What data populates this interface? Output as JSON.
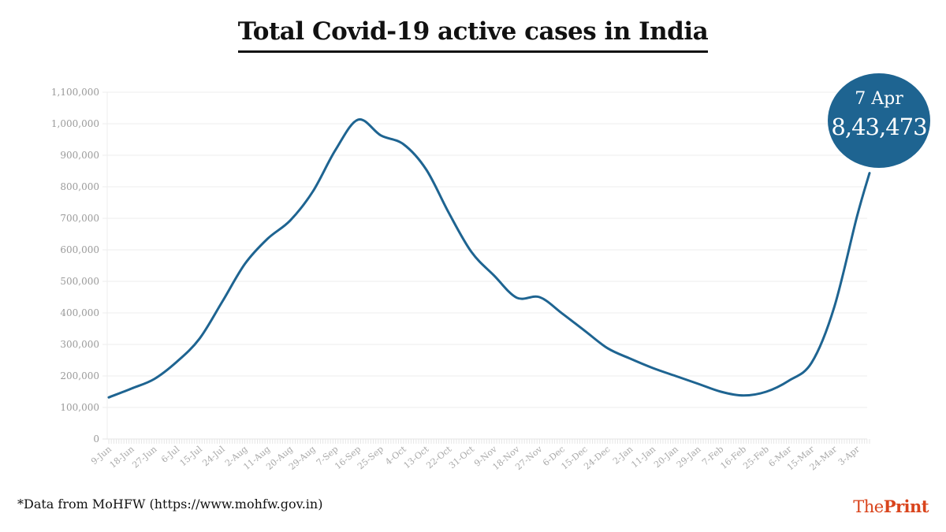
{
  "title": "Total Covid-19 active cases in India",
  "source": "*Data from MoHFW (https://www.mohfw.gov.in)",
  "logo": {
    "part1": "The",
    "part2": "Print",
    "color": "#d9441c"
  },
  "callout": {
    "date": "7 Apr",
    "value": "8,43,473",
    "color": "#1e6491"
  },
  "chart_data": {
    "type": "line",
    "title": "Total Covid-19 active cases in India",
    "xlabel": "",
    "ylabel": "",
    "ylim": [
      0,
      1100000
    ],
    "grid": true,
    "line_color": "#1e6491",
    "ytick_labels": [
      "0",
      "100,000",
      "200,000",
      "300,000",
      "400,000",
      "500,000",
      "600,000",
      "700,000",
      "800,000",
      "900,000",
      "1,000,000",
      "1,100,000"
    ],
    "ytick_values": [
      0,
      100000,
      200000,
      300000,
      400000,
      500000,
      600000,
      700000,
      800000,
      900000,
      1000000,
      1100000
    ],
    "xtick_labels": [
      "9-Jun",
      "18-Jun",
      "27-Jun",
      "6-Jul",
      "15-Jul",
      "24-Jul",
      "2-Aug",
      "11-Aug",
      "20-Aug",
      "29-Aug",
      "7-Sep",
      "16-Sep",
      "25-Sep",
      "4-Oct",
      "13-Oct",
      "22-Oct",
      "31-Oct",
      "9-Nov",
      "18-Nov",
      "27-Nov",
      "6-Dec",
      "15-Dec",
      "24-Dec",
      "2-Jan",
      "11-Jan",
      "20-Jan",
      "29-Jan",
      "7-Feb",
      "16-Feb",
      "25-Feb",
      "6-Mar",
      "15-Mar",
      "24-Mar",
      "3-Apr"
    ],
    "x_days_total": 302,
    "series": [
      {
        "name": "Active cases",
        "x_day": [
          0,
          9,
          18,
          27,
          36,
          45,
          54,
          63,
          72,
          81,
          90,
          99,
          108,
          117,
          126,
          135,
          144,
          153,
          162,
          171,
          180,
          189,
          198,
          207,
          216,
          225,
          234,
          243,
          252,
          261,
          270,
          279,
          288,
          297,
          302
        ],
        "dates": [
          "9-Jun",
          "18-Jun",
          "27-Jun",
          "6-Jul",
          "15-Jul",
          "24-Jul",
          "2-Aug",
          "11-Aug",
          "20-Aug",
          "29-Aug",
          "7-Sep",
          "16-Sep",
          "25-Sep",
          "4-Oct",
          "13-Oct",
          "22-Oct",
          "31-Oct",
          "9-Nov",
          "18-Nov",
          "27-Nov",
          "6-Dec",
          "15-Dec",
          "24-Dec",
          "2-Jan",
          "11-Jan",
          "20-Jan",
          "29-Jan",
          "7-Feb",
          "16-Feb",
          "25-Feb",
          "6-Mar",
          "15-Mar",
          "24-Mar",
          "3-Apr",
          "7-Apr"
        ],
        "values": [
          132000,
          160000,
          190000,
          245000,
          318000,
          435000,
          555000,
          635000,
          693000,
          785000,
          917000,
          1013000,
          963000,
          935000,
          855000,
          717000,
          593000,
          518000,
          448000,
          450000,
          398000,
          343000,
          288000,
          255000,
          225000,
          200000,
          175000,
          150000,
          138000,
          150000,
          185000,
          242000,
          418000,
          705000,
          843473
        ]
      }
    ]
  }
}
